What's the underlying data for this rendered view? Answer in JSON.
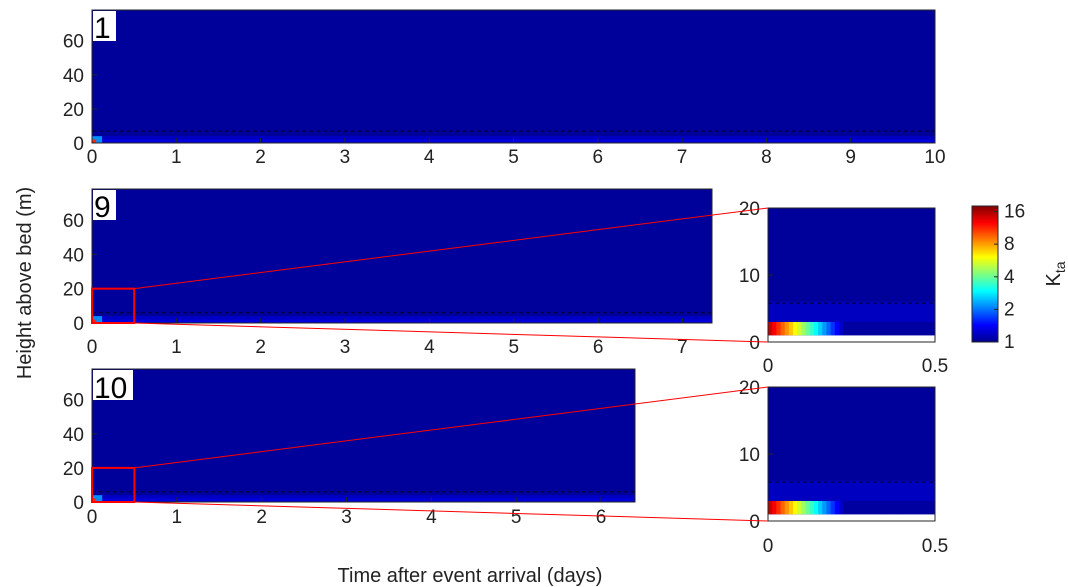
{
  "figure": {
    "xlabel": "Time after event arrival (days)",
    "ylabel": "Height above bed (m)"
  },
  "colorbar": {
    "label_main": "K",
    "label_sub": "ta",
    "colormap": "jet",
    "ticks": [
      "1",
      "2",
      "4",
      "8",
      "16"
    ],
    "scale": "log"
  },
  "chart_data": [
    {
      "type": "heatmap",
      "panel": "1",
      "xlim": [
        0,
        10
      ],
      "ylim": [
        0,
        78
      ],
      "xticks": [
        "0",
        "1",
        "2",
        "3",
        "4",
        "5",
        "6",
        "7",
        "8",
        "9",
        "10"
      ],
      "yticks": [
        "0",
        "20",
        "40",
        "60"
      ],
      "dashed_line_height": 7,
      "data_extent_days": 10
    },
    {
      "type": "heatmap",
      "panel": "9",
      "xlim": [
        0,
        7.35
      ],
      "ylim": [
        0,
        78
      ],
      "xticks": [
        "0",
        "1",
        "2",
        "3",
        "4",
        "5",
        "6",
        "7"
      ],
      "yticks": [
        "0",
        "20",
        "40",
        "60"
      ],
      "zoom_box": {
        "x": [
          0,
          0.5
        ],
        "y": [
          0,
          20
        ]
      },
      "dashed_line_height": 6,
      "data_extent_days": 7.35
    },
    {
      "type": "heatmap",
      "panel": "10",
      "xlim": [
        0,
        6.4
      ],
      "ylim": [
        0,
        78
      ],
      "xticks": [
        "0",
        "1",
        "2",
        "3",
        "4",
        "5",
        "6"
      ],
      "yticks": [
        "0",
        "20",
        "40",
        "60"
      ],
      "zoom_box": {
        "x": [
          0,
          0.5
        ],
        "y": [
          0,
          20
        ]
      },
      "dashed_line_height": 6,
      "data_extent_days": 6.4
    },
    {
      "type": "heatmap",
      "panel": "9-zoom",
      "xlim": [
        0,
        0.5
      ],
      "ylim": [
        0,
        20
      ],
      "xticks": [
        "0",
        "0.5"
      ],
      "yticks": [
        "0",
        "10",
        "20"
      ],
      "dashed_line_height": 5.8,
      "bottom_band": {
        "y": [
          1,
          3
        ],
        "kta_start": 16,
        "kta_decay_days": 0.25
      }
    },
    {
      "type": "heatmap",
      "panel": "10-zoom",
      "xlim": [
        0,
        0.5
      ],
      "ylim": [
        0,
        20
      ],
      "xticks": [
        "0",
        "0.5"
      ],
      "yticks": [
        "0",
        "10",
        "20"
      ],
      "dashed_line_height": 5.8,
      "bottom_band": {
        "y": [
          1,
          3
        ],
        "kta_start": 16,
        "kta_decay_days": 0.25
      }
    }
  ]
}
